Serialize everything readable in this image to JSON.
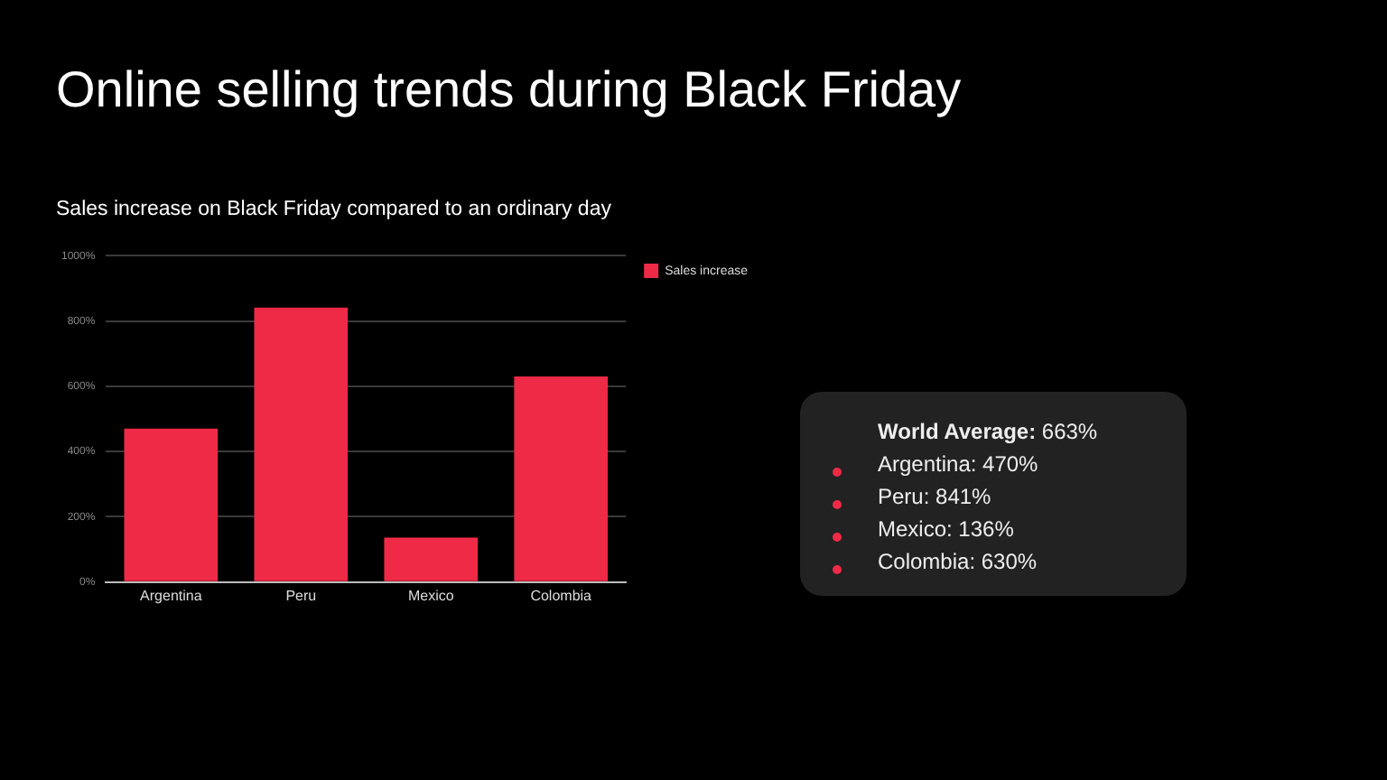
{
  "chart_data": [
    {
      "type": "bar",
      "title": "Online selling trends during Black Friday",
      "subtitle": "Sales increase on Black Friday compared to an ordinary day",
      "categories": [
        "Argentina",
        "Peru",
        "Mexico",
        "Colombia"
      ],
      "series": [
        {
          "name": "Sales increase",
          "color": "#ee2a47",
          "values": [
            470,
            841,
            136,
            630
          ]
        }
      ],
      "ylim": [
        0,
        1000
      ],
      "yticks": [
        {
          "value": 0,
          "label": "0%"
        },
        {
          "value": 200,
          "label": "200%"
        },
        {
          "value": 400,
          "label": "400%"
        },
        {
          "value": 600,
          "label": "600%"
        },
        {
          "value": 800,
          "label": "800%"
        },
        {
          "value": 1000,
          "label": "1000%"
        }
      ],
      "grid": "y",
      "legend": "top right"
    },
    {
      "type": "other",
      "annotations": [
        "World Average: 663%",
        "Argentina: 470%",
        "Peru: 841%",
        "Mexico: 136%",
        "Colombia: 630%"
      ]
    }
  ]
}
